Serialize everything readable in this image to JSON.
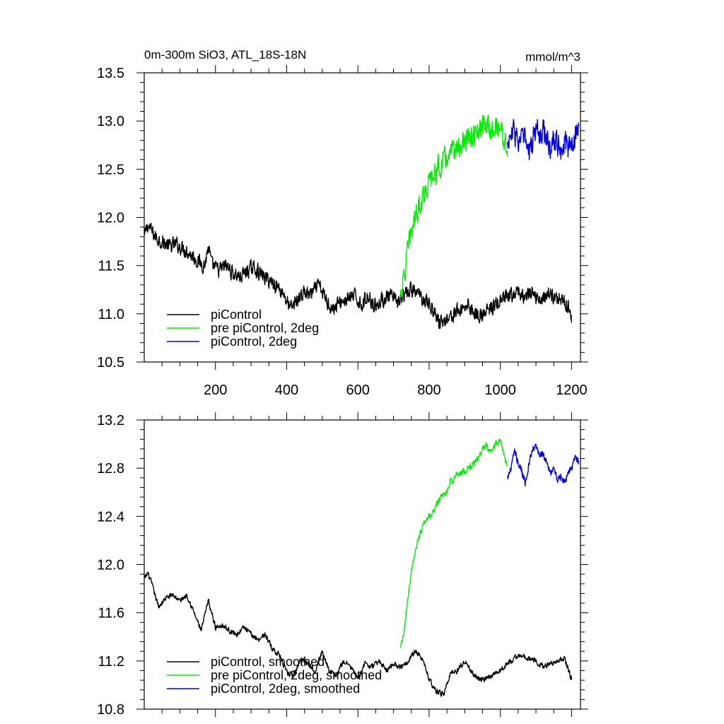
{
  "chart_data": [
    {
      "type": "line",
      "title": "0m-300m SiO3, ATL_18S-18N",
      "units": "mmol/m^3",
      "xlim": [
        0,
        1225
      ],
      "ylim": [
        10.5,
        13.5
      ],
      "x_ticks": [
        200,
        400,
        600,
        800,
        1000,
        1200
      ],
      "y_ticks": [
        "10.5",
        "11.0",
        "11.5",
        "12.0",
        "12.5",
        "13.0",
        "13.5"
      ],
      "legend_position": "bottom-left",
      "grid": false,
      "series": [
        {
          "name": "piControl",
          "color": "#000000",
          "noise": 0.07,
          "x": [
            1,
            10,
            30,
            50,
            70,
            90,
            110,
            130,
            150,
            170,
            180,
            190,
            210,
            230,
            250,
            270,
            290,
            310,
            330,
            350,
            370,
            390,
            410,
            430,
            450,
            470,
            490,
            510,
            530,
            550,
            570,
            590,
            610,
            630,
            650,
            670,
            690,
            710,
            730,
            750,
            770,
            790,
            810,
            830,
            850,
            870,
            890,
            910,
            930,
            950,
            970,
            990,
            1010,
            1030,
            1050,
            1070,
            1090,
            1110,
            1130,
            1150,
            1170,
            1190,
            1200
          ],
          "y": [
            11.8,
            11.92,
            11.8,
            11.75,
            11.7,
            11.72,
            11.68,
            11.62,
            11.55,
            11.5,
            11.7,
            11.5,
            11.45,
            11.5,
            11.42,
            11.38,
            11.45,
            11.48,
            11.4,
            11.35,
            11.3,
            11.22,
            11.05,
            11.15,
            11.22,
            11.2,
            11.3,
            11.15,
            11.05,
            11.12,
            11.15,
            11.18,
            11.1,
            11.18,
            11.08,
            11.15,
            11.18,
            11.12,
            11.18,
            11.25,
            11.2,
            11.15,
            11.05,
            10.9,
            10.95,
            11.0,
            11.05,
            11.1,
            11.0,
            10.98,
            11.05,
            11.1,
            11.15,
            11.18,
            11.22,
            11.18,
            11.2,
            11.15,
            11.2,
            11.18,
            11.15,
            11.1,
            10.95
          ]
        },
        {
          "name": "pre piControl, 2deg",
          "color": "#00ee00",
          "noise": 0.11,
          "x": [
            720,
            730,
            740,
            750,
            760,
            770,
            780,
            790,
            800,
            820,
            840,
            860,
            880,
            900,
            920,
            940,
            960,
            970,
            980,
            1000,
            1010,
            1020
          ],
          "y": [
            11.22,
            11.38,
            11.65,
            11.85,
            12.0,
            12.12,
            12.2,
            12.3,
            12.35,
            12.48,
            12.58,
            12.65,
            12.72,
            12.78,
            12.82,
            12.88,
            12.98,
            12.9,
            12.92,
            12.95,
            12.8,
            12.72
          ]
        },
        {
          "name": "piControl, 2deg",
          "color": "#0000ee",
          "noise": 0.12,
          "x": [
            1020,
            1030,
            1040,
            1050,
            1060,
            1070,
            1080,
            1090,
            1100,
            1110,
            1120,
            1130,
            1140,
            1150,
            1160,
            1170,
            1180,
            1190,
            1200,
            1210,
            1220
          ],
          "y": [
            12.75,
            12.85,
            12.9,
            12.78,
            12.8,
            12.82,
            12.65,
            12.78,
            12.92,
            12.85,
            12.9,
            12.82,
            12.7,
            12.85,
            12.78,
            12.72,
            12.8,
            12.7,
            12.75,
            12.85,
            12.9
          ]
        }
      ]
    },
    {
      "type": "line",
      "xlim": [
        0,
        1225
      ],
      "ylim": [
        10.8,
        13.2
      ],
      "x_ticks": [],
      "y_ticks": [
        "10.8",
        "11.2",
        "11.6",
        "12.0",
        "12.4",
        "12.8",
        "13.2"
      ],
      "legend_position": "bottom-left",
      "grid": false,
      "series": [
        {
          "name": "piControl, smoothed",
          "color": "#000000",
          "noise": 0.02,
          "x": [
            1,
            10,
            20,
            40,
            60,
            80,
            100,
            120,
            140,
            160,
            180,
            200,
            220,
            240,
            260,
            280,
            300,
            320,
            340,
            360,
            380,
            400,
            420,
            440,
            460,
            480,
            500,
            520,
            540,
            560,
            580,
            600,
            620,
            640,
            660,
            680,
            700,
            720,
            740,
            760,
            780,
            800,
            820,
            840,
            860,
            880,
            900,
            920,
            940,
            960,
            980,
            1000,
            1020,
            1040,
            1060,
            1080,
            1100,
            1120,
            1140,
            1160,
            1180,
            1200
          ],
          "y": [
            11.88,
            11.93,
            11.85,
            11.65,
            11.72,
            11.75,
            11.7,
            11.75,
            11.6,
            11.45,
            11.7,
            11.48,
            11.5,
            11.45,
            11.42,
            11.48,
            11.42,
            11.38,
            11.42,
            11.3,
            11.25,
            11.1,
            11.08,
            11.22,
            11.18,
            11.12,
            11.28,
            11.12,
            11.08,
            11.2,
            11.15,
            11.05,
            11.18,
            11.15,
            11.2,
            11.12,
            11.18,
            11.15,
            11.2,
            11.28,
            11.22,
            11.05,
            10.95,
            10.92,
            11.1,
            11.12,
            11.2,
            11.1,
            11.05,
            11.05,
            11.08,
            11.12,
            11.18,
            11.22,
            11.25,
            11.22,
            11.2,
            11.15,
            11.18,
            11.2,
            11.22,
            11.05
          ]
        },
        {
          "name": "pre piControl, 2deg, smoothed",
          "color": "#00ee00",
          "noise": 0.025,
          "x": [
            720,
            730,
            740,
            750,
            760,
            770,
            780,
            790,
            800,
            810,
            820,
            830,
            840,
            850,
            860,
            870,
            880,
            900,
            920,
            940,
            960,
            970,
            980,
            1000,
            1010,
            1020
          ],
          "y": [
            11.3,
            11.45,
            11.7,
            11.95,
            12.1,
            12.2,
            12.3,
            12.35,
            12.4,
            12.42,
            12.5,
            12.55,
            12.58,
            12.6,
            12.68,
            12.72,
            12.75,
            12.78,
            12.82,
            12.9,
            13.0,
            12.95,
            12.98,
            13.05,
            12.9,
            12.82
          ]
        },
        {
          "name": "piControl, 2deg, smoothed",
          "color": "#0000ee",
          "noise": 0.03,
          "x": [
            1020,
            1030,
            1040,
            1050,
            1060,
            1070,
            1080,
            1090,
            1100,
            1110,
            1120,
            1130,
            1140,
            1150,
            1160,
            1170,
            1180,
            1190,
            1200,
            1210,
            1220
          ],
          "y": [
            12.72,
            12.8,
            12.95,
            12.85,
            12.78,
            12.68,
            12.82,
            12.95,
            12.98,
            12.9,
            12.92,
            12.85,
            12.75,
            12.8,
            12.7,
            12.72,
            12.68,
            12.75,
            12.8,
            12.9,
            12.85
          ]
        }
      ]
    }
  ]
}
